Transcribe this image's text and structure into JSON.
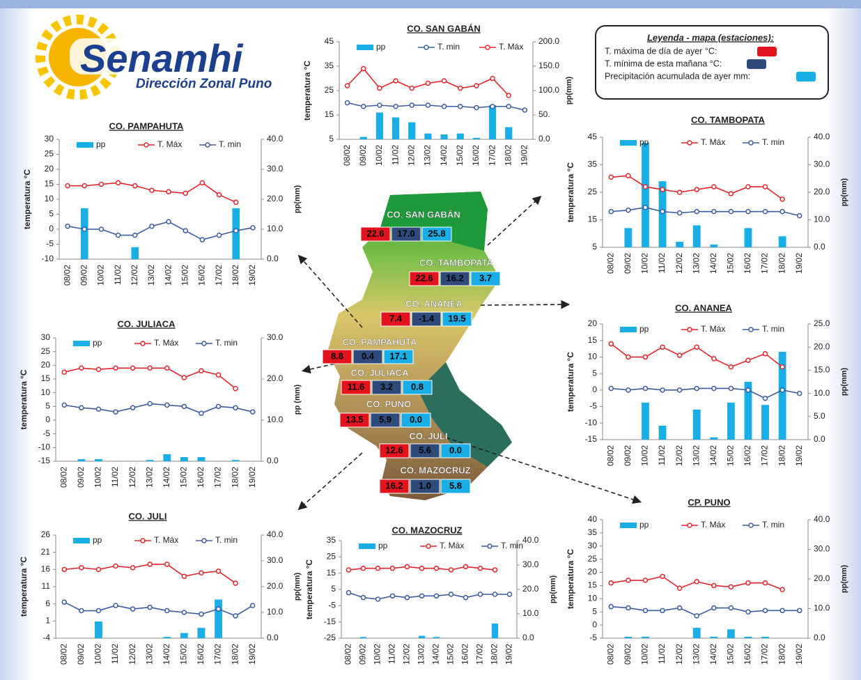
{
  "logo": {
    "name": "Senamhi",
    "subtitle": "Dirección Zonal Puno"
  },
  "legend_box": {
    "title": "Leyenda - mapa (estaciones):",
    "items": [
      "T. máxima de día de ayer °C:",
      "T. mínima de esta mañana °C:",
      "Precipitación acumulada de ayer mm:"
    ]
  },
  "map": {
    "stations": [
      {
        "name": "CO. SAN GABÁN",
        "tmax": "22.6",
        "tmin": "17.0",
        "pp": "25.8"
      },
      {
        "name": "CO. TAMBOPATA",
        "tmax": "22.6",
        "tmin": "16.2",
        "pp": "3.7"
      },
      {
        "name": "CO. ANANEA",
        "tmax": "7.4",
        "tmin": "-1.4",
        "pp": "19.5"
      },
      {
        "name": "CO. PAMPAHUTA",
        "tmax": "8.8",
        "tmin": "0.4",
        "pp": "17.1"
      },
      {
        "name": "CO. JULIACA",
        "tmax": "11.6",
        "tmin": "3.2",
        "pp": "0.8"
      },
      {
        "name": "CO. PUNO",
        "tmax": "13.5",
        "tmin": "5.9",
        "pp": "0.0"
      },
      {
        "name": "CO. JULI",
        "tmax": "12.6",
        "tmin": "5.6",
        "pp": "0.0"
      },
      {
        "name": "CO. MAZOCRUZ",
        "tmax": "16.2",
        "tmin": "1.0",
        "pp": "5.8"
      }
    ]
  },
  "chart_data": [
    {
      "type": "combo",
      "title": "CO. SAN GABÁN",
      "y_label": "temperatura °C",
      "y2_label": "pp(mm)",
      "categories": [
        "08/02",
        "09/02",
        "10/02",
        "11/02",
        "12/02",
        "13/02",
        "14/02",
        "15/02",
        "16/02",
        "17/02",
        "18/02",
        "19/02"
      ],
      "ylim": [
        5,
        45
      ],
      "yticks": [
        5,
        15,
        25,
        35,
        45
      ],
      "y2lim": [
        0,
        200
      ],
      "y2ticks": [
        {
          "value": 0,
          "label": "0.0"
        },
        {
          "value": 50,
          "label": "50."
        },
        {
          "value": 100,
          "label": "100.0"
        },
        {
          "value": 150,
          "label": "150.0"
        },
        {
          "value": 200,
          "label": "200.0"
        }
      ],
      "series": [
        {
          "name": "pp",
          "type": "bar",
          "axis": "y2",
          "color": "#19aee6",
          "values": [
            0,
            5,
            55,
            45,
            35,
            12,
            10,
            12,
            3,
            70,
            25,
            0
          ]
        },
        {
          "name": "T. min",
          "type": "line",
          "color": "#3a5ba0",
          "values": [
            20,
            18.5,
            19,
            18.5,
            19,
            19,
            18.5,
            18.5,
            18,
            18.5,
            18.5,
            17
          ]
        },
        {
          "name": "T. Máx",
          "type": "line",
          "color": "#e3242b",
          "values": [
            27,
            34,
            26,
            29,
            26,
            28,
            29,
            26,
            27,
            30,
            23,
            null
          ]
        }
      ]
    },
    {
      "type": "combo",
      "title": "CO. PAMPAHUTA",
      "y_label": "temperatura °C",
      "y2_label": "pp(mm)",
      "categories": [
        "08/02",
        "09/02",
        "10/02",
        "11/02",
        "12/02",
        "13/02",
        "14/02",
        "15/02",
        "16/02",
        "17/02",
        "18/02",
        "19/02"
      ],
      "ylim": [
        -10,
        30
      ],
      "yticks": [
        -10,
        -5,
        0,
        5,
        10,
        15,
        20,
        25,
        30
      ],
      "y2lim": [
        0,
        40
      ],
      "y2ticks": [
        {
          "value": 0,
          "label": "0.0"
        },
        {
          "value": 10,
          "label": "10.0"
        },
        {
          "value": 20,
          "label": "20.0"
        },
        {
          "value": 30,
          "label": "30.0"
        },
        {
          "value": 40,
          "label": "40.0"
        }
      ],
      "series": [
        {
          "name": "pp",
          "type": "bar",
          "axis": "y2",
          "color": "#19aee6",
          "values": [
            0,
            17,
            0,
            0,
            4,
            0,
            0,
            0,
            0,
            0,
            17,
            0
          ]
        },
        {
          "name": "T. Máx",
          "type": "line",
          "color": "#e3242b",
          "values": [
            14.5,
            14.5,
            15,
            15.5,
            14.5,
            13,
            12.5,
            12,
            15.5,
            11.5,
            9,
            null
          ]
        },
        {
          "name": "T. min",
          "type": "line",
          "color": "#3a5ba0",
          "values": [
            1,
            0,
            0,
            -2,
            -2,
            1,
            2.5,
            -0.5,
            -3.5,
            -2,
            -0.5,
            0.5
          ]
        }
      ]
    },
    {
      "type": "combo",
      "title": "CO. TAMBOPATA",
      "y_label": "temperatura °C",
      "y2_label": "pp(mm)",
      "categories": [
        "08/02",
        "09/02",
        "10/02",
        "11/02",
        "12/02",
        "13/02",
        "14/02",
        "15/02",
        "16/02",
        "17/02",
        "18/02",
        "19/02"
      ],
      "ylim": [
        5,
        45
      ],
      "yticks": [
        5,
        15,
        25,
        35,
        45
      ],
      "y2lim": [
        0,
        40
      ],
      "y2ticks": [
        {
          "value": 0,
          "label": "0.0"
        },
        {
          "value": 10,
          "label": "10.0"
        },
        {
          "value": 20,
          "label": "20.0"
        },
        {
          "value": 30,
          "label": "30.0"
        },
        {
          "value": 40,
          "label": "40.0"
        }
      ],
      "series": [
        {
          "name": "pp",
          "type": "bar",
          "axis": "y2",
          "color": "#19aee6",
          "values": [
            0,
            7,
            38,
            24,
            2,
            8,
            1,
            0,
            7,
            0,
            4,
            0
          ]
        },
        {
          "name": "T. Máx",
          "type": "line",
          "color": "#e3242b",
          "values": [
            30.5,
            31,
            27,
            26,
            25,
            26,
            27,
            24.5,
            27,
            27,
            22.5,
            null
          ]
        },
        {
          "name": "T. min",
          "type": "line",
          "color": "#3a5ba0",
          "values": [
            18,
            18.5,
            19.5,
            18,
            17.5,
            18,
            18,
            18,
            18,
            18,
            18,
            16.5
          ]
        }
      ]
    },
    {
      "type": "combo",
      "title": "CO. JULIACA",
      "y_label": "temperatura °C",
      "y2_label": "pp (mm)",
      "categories": [
        "08/02",
        "09/02",
        "10/02",
        "11/02",
        "12/02",
        "13/02",
        "14/02",
        "15/02",
        "16/02",
        "17/02",
        "18/02",
        "19/02"
      ],
      "ylim": [
        -15,
        30
      ],
      "yticks": [
        -15,
        -10,
        -5,
        0,
        5,
        10,
        15,
        20,
        25,
        30
      ],
      "y2lim": [
        0,
        30
      ],
      "y2ticks": [
        {
          "value": 0,
          "label": "0.0"
        },
        {
          "value": 10,
          "label": "10.0"
        },
        {
          "value": 20,
          "label": "20.0"
        },
        {
          "value": 30,
          "label": "30.0"
        }
      ],
      "series": [
        {
          "name": "pp",
          "type": "bar",
          "axis": "y2",
          "color": "#19aee6",
          "values": [
            0,
            0.5,
            0.5,
            0,
            0,
            0.3,
            1.7,
            1,
            1,
            0,
            0.3,
            0
          ]
        },
        {
          "name": "T. Máx",
          "type": "line",
          "color": "#e3242b",
          "values": [
            17.5,
            19,
            18.5,
            19,
            19,
            19,
            19,
            15.5,
            18,
            16.5,
            11.5,
            null
          ]
        },
        {
          "name": "T. min",
          "type": "line",
          "color": "#3a5ba0",
          "values": [
            5.5,
            4.5,
            4,
            3,
            4.5,
            6,
            5.5,
            5,
            2.5,
            5,
            4.5,
            3
          ]
        }
      ]
    },
    {
      "type": "combo",
      "title": "CO. ANANEA",
      "y_label": "temperatura °C",
      "y2_label": "pp(mm)",
      "categories": [
        "08/02",
        "09/02",
        "10/02",
        "11/02",
        "12/02",
        "13/02",
        "14/02",
        "15/02",
        "16/02",
        "17/02",
        "18/02",
        "19/02"
      ],
      "ylim": [
        -15,
        20
      ],
      "yticks": [
        -15,
        -10,
        -5,
        0,
        5,
        10,
        15,
        20
      ],
      "y2lim": [
        0,
        25
      ],
      "y2ticks": [
        {
          "value": 0,
          "label": "0.0"
        },
        {
          "value": 5,
          "label": "5.0"
        },
        {
          "value": 10,
          "label": "10.0"
        },
        {
          "value": 15,
          "label": "15.0"
        },
        {
          "value": 20,
          "label": "20.0"
        },
        {
          "value": 25,
          "label": "25.0"
        }
      ],
      "series": [
        {
          "name": "pp",
          "type": "bar",
          "axis": "y2",
          "color": "#19aee6",
          "values": [
            0,
            0,
            8,
            3,
            0,
            6.5,
            0.5,
            8,
            12.5,
            7.5,
            19,
            0
          ]
        },
        {
          "name": "T. Máx",
          "type": "line",
          "color": "#e3242b",
          "values": [
            14,
            10,
            10,
            13,
            10.5,
            13,
            9.5,
            7,
            9,
            11,
            7,
            null
          ]
        },
        {
          "name": "T. min",
          "type": "line",
          "color": "#3a5ba0",
          "values": [
            0.5,
            0,
            0.5,
            0,
            0,
            0.5,
            0.5,
            0.5,
            0,
            -2.5,
            0,
            -1
          ]
        }
      ]
    },
    {
      "type": "combo",
      "title": "CO. JULI",
      "y_label": "temperatura °C",
      "y2_label": "pp(mm)",
      "categories": [
        "08/02",
        "09/02",
        "10/02",
        "11/02",
        "12/02",
        "13/02",
        "14/02",
        "15/02",
        "16/02",
        "17/02",
        "18/02",
        "19/02"
      ],
      "ylim": [
        -4,
        26
      ],
      "yticks": [
        -4,
        1,
        6,
        11,
        16,
        21,
        26
      ],
      "y2lim": [
        0,
        40
      ],
      "y2ticks": [
        {
          "value": 0,
          "label": "0.0"
        },
        {
          "value": 10,
          "label": "10.0"
        },
        {
          "value": 20,
          "label": "20.0"
        },
        {
          "value": 30,
          "label": "30.0"
        },
        {
          "value": 40,
          "label": "40.0"
        }
      ],
      "series": [
        {
          "name": "pp",
          "type": "bar",
          "axis": "y2",
          "color": "#19aee6",
          "values": [
            0,
            0,
            6.5,
            0,
            0,
            0,
            0.5,
            2,
            4,
            15,
            0,
            0
          ]
        },
        {
          "name": "T. Máx",
          "type": "line",
          "color": "#e3242b",
          "values": [
            16,
            16.5,
            16,
            17,
            16.5,
            17.5,
            17.5,
            14,
            15,
            15.5,
            12,
            null
          ]
        },
        {
          "name": "T. min",
          "type": "line",
          "color": "#3a5ba0",
          "values": [
            6.5,
            4,
            4,
            5.5,
            4.5,
            5,
            4,
            3.5,
            3,
            4.5,
            2.5,
            5.5
          ]
        }
      ]
    },
    {
      "type": "combo",
      "title": "CO. MAZOCRUZ",
      "y_label": "temperatura °C",
      "y2_label": "pp(mm)",
      "categories": [
        "08/02",
        "09/02",
        "10/02",
        "11/02",
        "12/02",
        "13/02",
        "14/02",
        "15/02",
        "16/02",
        "17/02",
        "18/02",
        "19/02"
      ],
      "ylim": [
        -25,
        35
      ],
      "yticks": [
        -25,
        -15,
        -5,
        5,
        15,
        25,
        35
      ],
      "y2lim": [
        0,
        40
      ],
      "y2ticks": [
        {
          "value": 0,
          "label": "0.0"
        },
        {
          "value": 10,
          "label": "10.0"
        },
        {
          "value": 20,
          "label": "20.0"
        },
        {
          "value": 30,
          "label": "30.0"
        },
        {
          "value": 40,
          "label": "40.0"
        }
      ],
      "series": [
        {
          "name": "pp",
          "type": "bar",
          "axis": "y2",
          "color": "#19aee6",
          "values": [
            0,
            0.5,
            0,
            0,
            0,
            1,
            0.5,
            0,
            0,
            0,
            6,
            0
          ]
        },
        {
          "name": "T. Máx",
          "type": "line",
          "color": "#e3242b",
          "values": [
            17,
            18,
            18,
            18,
            19,
            18,
            18,
            17,
            19,
            18,
            17,
            null
          ]
        },
        {
          "name": "T. min",
          "type": "line",
          "color": "#3a5ba0",
          "values": [
            3,
            0,
            -1,
            1,
            0,
            1,
            1,
            2,
            0,
            2,
            2,
            2
          ]
        }
      ]
    },
    {
      "type": "combo",
      "title": "CP. PUNO",
      "y_label": "temperatura °C",
      "y2_label": "pp(mm)",
      "categories": [
        "08/02",
        "09/02",
        "10/02",
        "11/02",
        "12/02",
        "13/02",
        "14/02",
        "15/02",
        "16/02",
        "17/02",
        "18/02",
        "19/02"
      ],
      "ylim": [
        -5,
        40
      ],
      "yticks": [
        -5,
        0,
        5,
        10,
        15,
        20,
        25,
        30,
        35,
        40
      ],
      "y2lim": [
        0,
        40
      ],
      "y2ticks": [
        {
          "value": 0,
          "label": "0.0"
        },
        {
          "value": 10,
          "label": "10.0"
        },
        {
          "value": 20,
          "label": "20.0"
        },
        {
          "value": 30,
          "label": "30.0"
        },
        {
          "value": 40,
          "label": "40.0"
        }
      ],
      "series": [
        {
          "name": "pp",
          "type": "bar",
          "axis": "y2",
          "color": "#19aee6",
          "values": [
            0,
            0.5,
            0.5,
            0,
            0,
            3.5,
            0.5,
            3,
            0.5,
            0.5,
            0,
            0
          ]
        },
        {
          "name": "T. Máx",
          "type": "line",
          "color": "#e3242b",
          "values": [
            16,
            17,
            17,
            18.5,
            14,
            16.5,
            15,
            14.5,
            16,
            16,
            13.5,
            null
          ]
        },
        {
          "name": "T. min",
          "type": "line",
          "color": "#3a5ba0",
          "values": [
            7,
            6.5,
            5.5,
            5.5,
            6.5,
            3.5,
            6.5,
            6.5,
            5,
            5.5,
            5.5,
            5.5
          ]
        }
      ]
    }
  ]
}
